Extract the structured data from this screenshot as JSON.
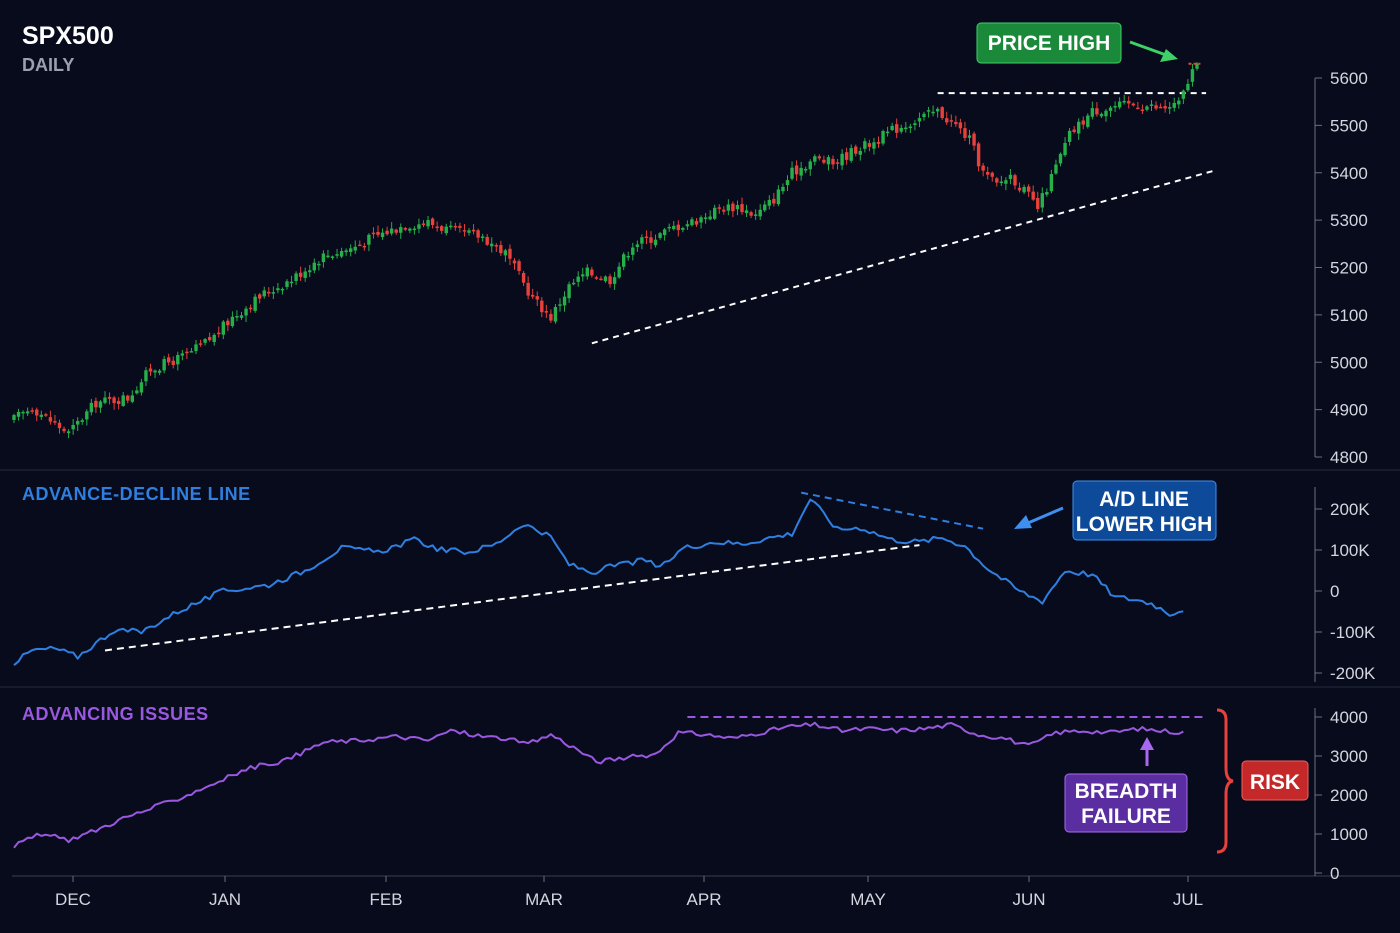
{
  "header": {
    "symbol": "SPX500",
    "timeframe": "DAILY"
  },
  "colors": {
    "background": "#070b1c",
    "up": "#26b04a",
    "down": "#e8403b",
    "ad_line": "#2f7fe0",
    "advancing": "#9a58e0",
    "price_high_box": "#1a8a3a",
    "ad_box": "#0d4a9a",
    "breadth_box": "#5a2ea0",
    "risk_box": "#c42828",
    "risk_brace": "#e8403b",
    "axis": "#6a7080"
  },
  "x_axis": {
    "labels": [
      "DEC",
      "JAN",
      "FEB",
      "MAR",
      "APR",
      "MAY",
      "JUN",
      "JUL"
    ]
  },
  "annotations": {
    "price_high": "PRICE HIGH",
    "ad_lower_high": [
      "A/D LINE",
      "LOWER HIGH"
    ],
    "breadth_failure": [
      "BREADTH",
      "FAILURE"
    ],
    "risk": "RISK"
  },
  "chart_data": [
    {
      "type": "candlestick",
      "title": "SPX500",
      "subtitle": "DAILY",
      "ylim": [
        4800,
        5600
      ],
      "yticks": [
        4800,
        4900,
        5000,
        5100,
        5200,
        5300,
        5400,
        5500,
        5600
      ],
      "ytick_labels": [
        "4800",
        "4900",
        "5000",
        "5100",
        "5200",
        "5300",
        "5400",
        "5500",
        "5600"
      ],
      "close_anchors": [
        [
          0,
          4880
        ],
        [
          4,
          4905
        ],
        [
          9,
          4870
        ],
        [
          12,
          4850
        ],
        [
          18,
          4915
        ],
        [
          25,
          4925
        ],
        [
          30,
          4985
        ],
        [
          38,
          5015
        ],
        [
          44,
          5055
        ],
        [
          48,
          5095
        ],
        [
          55,
          5145
        ],
        [
          61,
          5175
        ],
        [
          68,
          5225
        ],
        [
          74,
          5240
        ],
        [
          79,
          5265
        ],
        [
          86,
          5290
        ],
        [
          91,
          5295
        ],
        [
          97,
          5275
        ],
        [
          103,
          5265
        ],
        [
          108,
          5230
        ],
        [
          114,
          5135
        ],
        [
          118,
          5095
        ],
        [
          122,
          5160
        ],
        [
          126,
          5190
        ],
        [
          131,
          5175
        ],
        [
          136,
          5250
        ],
        [
          141,
          5265
        ],
        [
          145,
          5285
        ],
        [
          150,
          5300
        ],
        [
          155,
          5325
        ],
        [
          159,
          5330
        ],
        [
          163,
          5310
        ],
        [
          167,
          5345
        ],
        [
          171,
          5400
        ],
        [
          176,
          5430
        ],
        [
          180,
          5420
        ],
        [
          185,
          5450
        ],
        [
          189,
          5465
        ],
        [
          193,
          5490
        ],
        [
          199,
          5515
        ],
        [
          203,
          5530
        ],
        [
          207,
          5500
        ],
        [
          210,
          5470
        ],
        [
          213,
          5400
        ],
        [
          216,
          5375
        ],
        [
          219,
          5395
        ],
        [
          223,
          5350
        ],
        [
          225,
          5325
        ],
        [
          228,
          5390
        ],
        [
          232,
          5480
        ],
        [
          237,
          5530
        ],
        [
          242,
          5540
        ],
        [
          247,
          5545
        ],
        [
          252,
          5535
        ],
        [
          256,
          5545
        ],
        [
          259,
          5615
        ],
        [
          260,
          5620
        ]
      ],
      "reference_lines": [
        {
          "type": "resistance",
          "from": [
            203,
            5568
          ],
          "to": [
            262,
            5568
          ]
        },
        {
          "type": "trendline",
          "from": [
            127,
            5040
          ],
          "to": [
            264,
            5405
          ]
        }
      ],
      "price_high": {
        "x": 259,
        "value": 5630
      }
    },
    {
      "type": "line",
      "title": "ADVANCE-DECLINE LINE",
      "ylim": [
        -200000,
        200000
      ],
      "yticks": [
        -200000,
        -100000,
        0,
        100000,
        200000
      ],
      "ytick_labels": [
        "-200K",
        "-100K",
        "0",
        "100K",
        "200K"
      ],
      "anchors": [
        [
          0,
          -175000
        ],
        [
          4,
          -145000
        ],
        [
          9,
          -140000
        ],
        [
          14,
          -160000
        ],
        [
          22,
          -95000
        ],
        [
          28,
          -100000
        ],
        [
          36,
          -50000
        ],
        [
          46,
          0
        ],
        [
          56,
          15000
        ],
        [
          64,
          50000
        ],
        [
          72,
          105000
        ],
        [
          80,
          95000
        ],
        [
          88,
          125000
        ],
        [
          94,
          100000
        ],
        [
          100,
          95000
        ],
        [
          106,
          115000
        ],
        [
          112,
          165000
        ],
        [
          118,
          130000
        ],
        [
          122,
          65000
        ],
        [
          127,
          45000
        ],
        [
          133,
          65000
        ],
        [
          139,
          75000
        ],
        [
          142,
          55000
        ],
        [
          147,
          105000
        ],
        [
          154,
          120000
        ],
        [
          160,
          115000
        ],
        [
          166,
          130000
        ],
        [
          171,
          140000
        ],
        [
          175,
          225000
        ],
        [
          181,
          150000
        ],
        [
          186,
          155000
        ],
        [
          193,
          125000
        ],
        [
          199,
          120000
        ],
        [
          204,
          130000
        ],
        [
          209,
          110000
        ],
        [
          214,
          55000
        ],
        [
          221,
          0
        ],
        [
          226,
          -25000
        ],
        [
          231,
          50000
        ],
        [
          237,
          40000
        ],
        [
          242,
          -15000
        ],
        [
          246,
          -20000
        ],
        [
          250,
          -30000
        ],
        [
          254,
          -55000
        ],
        [
          257,
          -45000
        ]
      ],
      "reference_lines": [
        {
          "type": "lower-high",
          "from": [
            173,
            240000
          ],
          "to": [
            213,
            152000
          ]
        },
        {
          "type": "support",
          "from": [
            20,
            -145000
          ],
          "to": [
            199,
            112000
          ]
        }
      ]
    },
    {
      "type": "line",
      "title": "ADVANCING ISSUES",
      "ylim": [
        0,
        4000
      ],
      "yticks": [
        0,
        1000,
        2000,
        3000,
        4000
      ],
      "ytick_labels": [
        "0",
        "1000",
        "2000",
        "3000",
        "4000"
      ],
      "anchors": [
        [
          0,
          700
        ],
        [
          6,
          1000
        ],
        [
          12,
          850
        ],
        [
          18,
          1100
        ],
        [
          24,
          1400
        ],
        [
          30,
          1650
        ],
        [
          36,
          1900
        ],
        [
          44,
          2300
        ],
        [
          52,
          2700
        ],
        [
          60,
          2900
        ],
        [
          68,
          3350
        ],
        [
          76,
          3400
        ],
        [
          84,
          3500
        ],
        [
          91,
          3400
        ],
        [
          96,
          3650
        ],
        [
          103,
          3500
        ],
        [
          108,
          3450
        ],
        [
          113,
          3300
        ],
        [
          118,
          3550
        ],
        [
          124,
          3150
        ],
        [
          128,
          2850
        ],
        [
          134,
          2950
        ],
        [
          141,
          3050
        ],
        [
          146,
          3600
        ],
        [
          152,
          3550
        ],
        [
          158,
          3450
        ],
        [
          164,
          3600
        ],
        [
          170,
          3750
        ],
        [
          176,
          3800
        ],
        [
          182,
          3650
        ],
        [
          188,
          3700
        ],
        [
          194,
          3650
        ],
        [
          200,
          3700
        ],
        [
          206,
          3800
        ],
        [
          212,
          3550
        ],
        [
          218,
          3450
        ],
        [
          223,
          3250
        ],
        [
          229,
          3600
        ],
        [
          235,
          3650
        ],
        [
          241,
          3600
        ],
        [
          247,
          3700
        ],
        [
          252,
          3650
        ],
        [
          257,
          3600
        ]
      ],
      "reference_lines": [
        {
          "type": "ceiling",
          "from": [
            148,
            4000
          ],
          "to": [
            262,
            4000
          ]
        }
      ]
    }
  ]
}
